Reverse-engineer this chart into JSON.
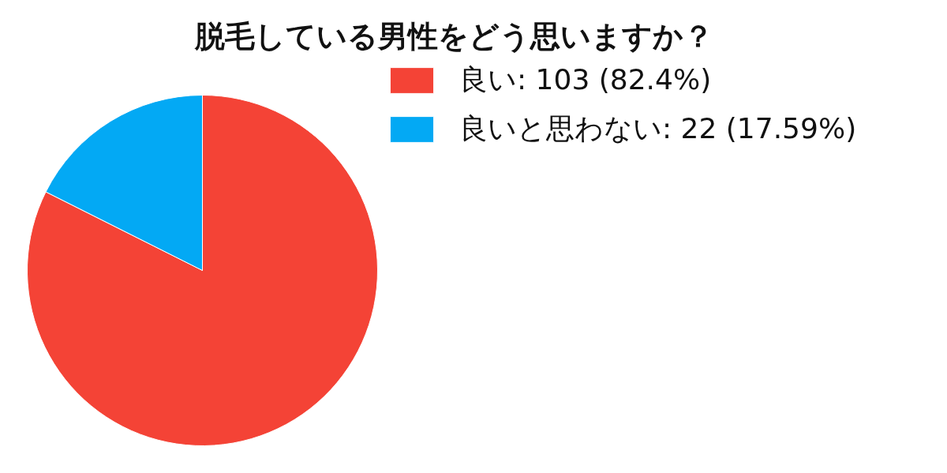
{
  "chart_data": {
    "type": "pie",
    "title": "脱毛している男性をどう思いますか？",
    "categories": [
      "良い: 103 (82.4%)",
      "良いと思わない: 22 (17.59%)"
    ],
    "values": [
      103,
      22
    ],
    "colors": [
      "#f44336",
      "#03a9f4"
    ],
    "legend": "top right"
  }
}
